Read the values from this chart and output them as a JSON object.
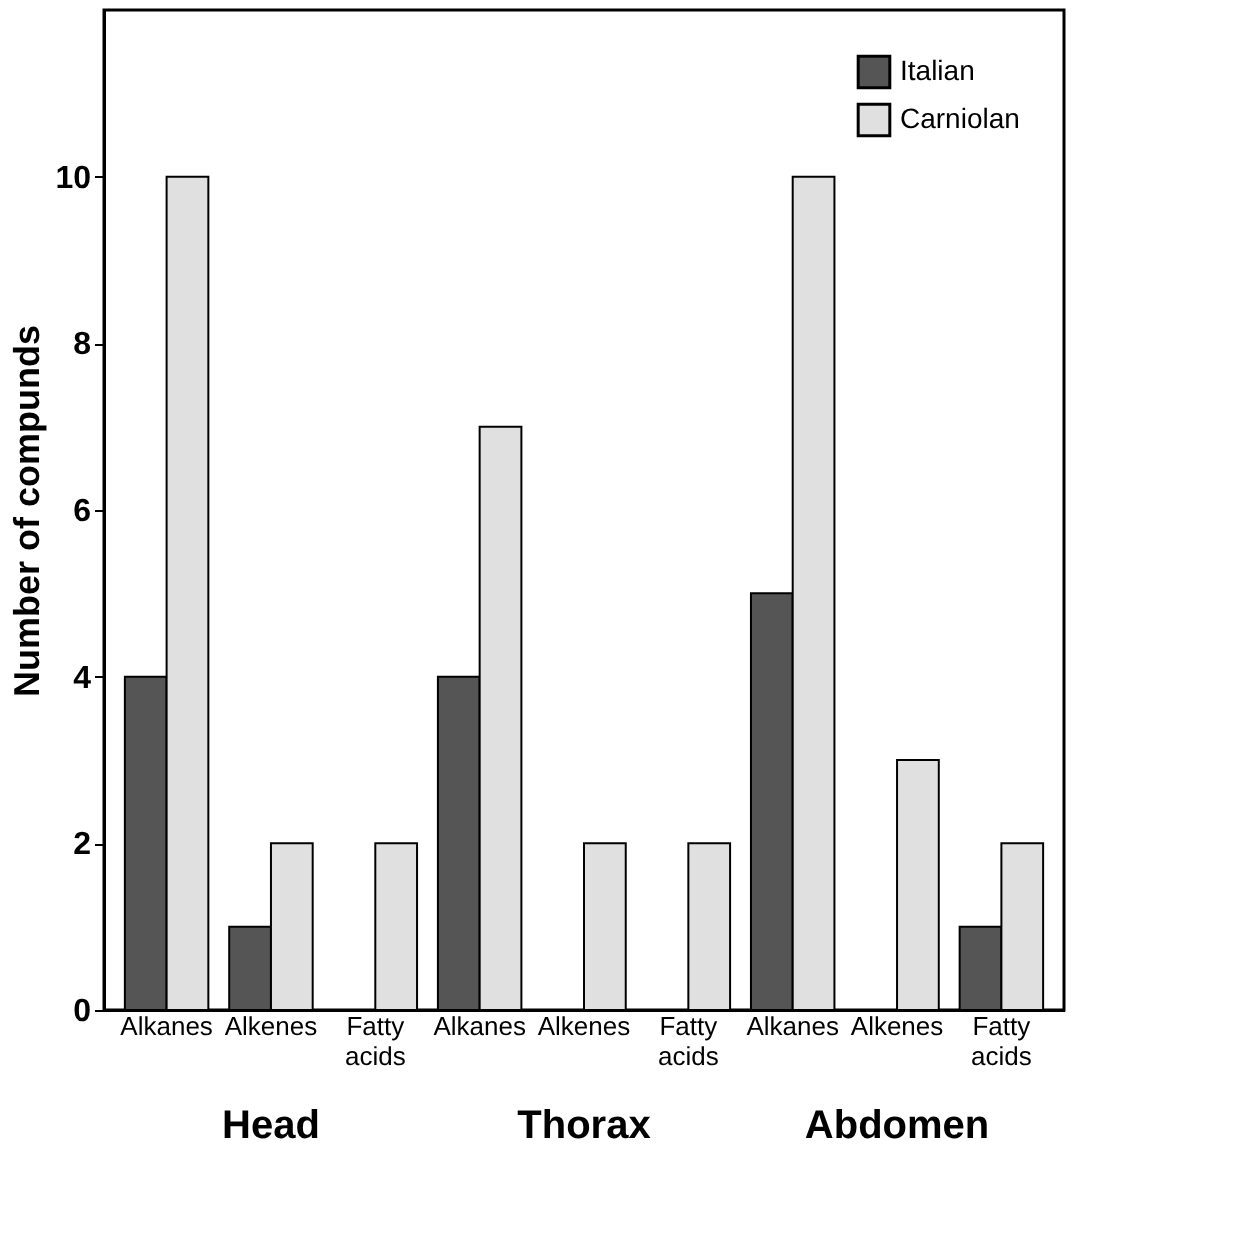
{
  "chart_data": {
    "type": "bar",
    "ylabel": "Number of compunds",
    "categories": [
      "Alkanes",
      "Alkenes",
      "Fatty acids",
      "Alkanes",
      "Alkenes",
      "Fatty acids",
      "Alkanes",
      "Alkenes",
      "Fatty acids"
    ],
    "series": [
      {
        "name": "Italian",
        "color": "#555555",
        "values": [
          4,
          1,
          0,
          4,
          0,
          0,
          5,
          0,
          1
        ]
      },
      {
        "name": "Carniolan",
        "color": "#e0e0e0",
        "values": [
          10,
          2,
          2,
          7,
          2,
          2,
          10,
          3,
          2
        ]
      }
    ],
    "annotations": [
      "Head",
      "Thorax",
      "Abdomen"
    ],
    "ylim": [
      0,
      12
    ],
    "yticks": [
      0,
      2,
      4,
      6,
      8,
      10
    ],
    "grid": false,
    "legend": "top right"
  }
}
